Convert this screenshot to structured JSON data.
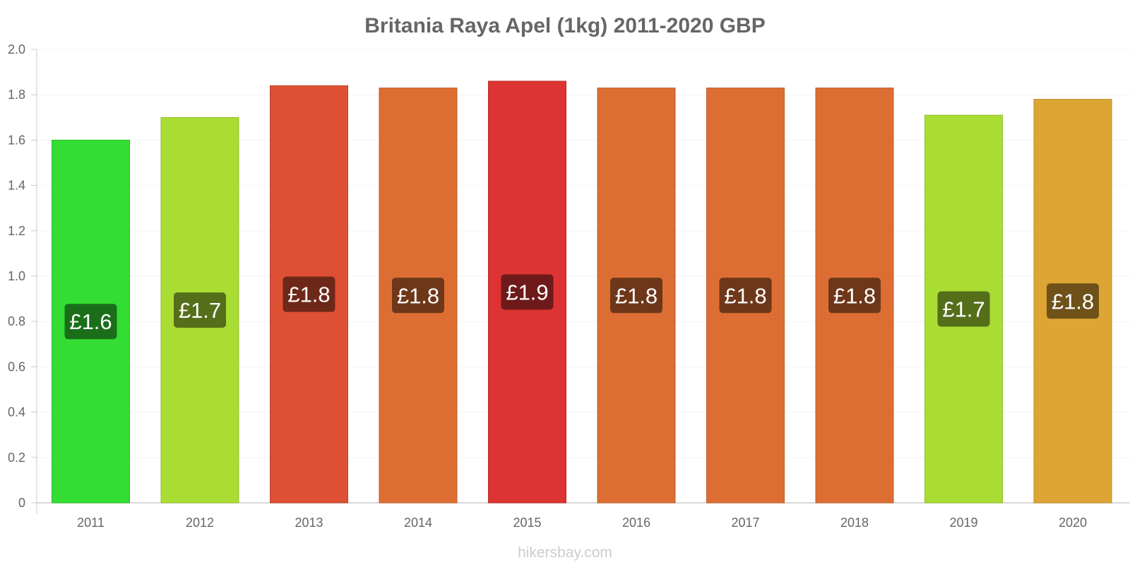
{
  "chart_data": {
    "type": "bar",
    "title": "Britania Raya Apel (1kg) 2011-2020 GBP",
    "xlabel": "",
    "ylabel": "",
    "categories": [
      "2011",
      "2012",
      "2013",
      "2014",
      "2015",
      "2016",
      "2017",
      "2018",
      "2019",
      "2020"
    ],
    "values": [
      1.6,
      1.7,
      1.84,
      1.83,
      1.86,
      1.83,
      1.83,
      1.83,
      1.71,
      1.78
    ],
    "data_labels": [
      "£1.6",
      "£1.7",
      "£1.8",
      "£1.8",
      "£1.9",
      "£1.8",
      "£1.8",
      "£1.8",
      "£1.7",
      "£1.8"
    ],
    "bar_colors": [
      "#33dd33",
      "#aadd33",
      "#dd5033",
      "#dd6e33",
      "#dd3333",
      "#dd6e33",
      "#dd6e33",
      "#dd6e33",
      "#aadd33",
      "#dda533"
    ],
    "label_bg_colors": [
      "#1a6e1a",
      "#556e1a",
      "#6e2819",
      "#6e3719",
      "#6e1a1a",
      "#6e3719",
      "#6e3719",
      "#6e3719",
      "#556e1a",
      "#6e5219"
    ],
    "ylim": [
      0,
      2.0
    ],
    "yticks": [
      "0",
      "0.2",
      "0.4",
      "0.6",
      "0.8",
      "1.0",
      "1.2",
      "1.4",
      "1.6",
      "1.8",
      "2.0"
    ],
    "grid": true,
    "legend": "none"
  },
  "watermark": "hikersbay.com"
}
